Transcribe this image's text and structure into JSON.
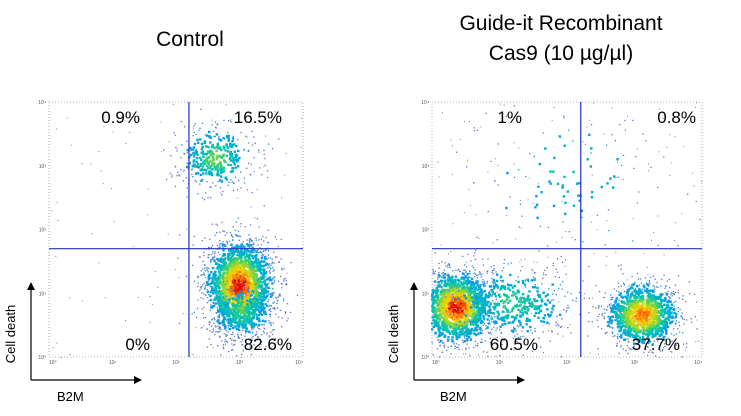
{
  "chart_data": [
    {
      "type": "scatter",
      "subtype": "flow-cytometry-density-dot-plot",
      "title_lines": [
        "Control"
      ],
      "xlabel": "B2M",
      "ylabel": "Cell death",
      "x_scale": "log",
      "y_scale": "log",
      "xlim": [
        1,
        10000
      ],
      "ylim": [
        1,
        10000
      ],
      "x_ticks": [
        "10⁰",
        "10¹",
        "10²",
        "10³",
        "10⁴"
      ],
      "y_ticks": [
        "10⁰",
        "10¹",
        "10²",
        "10³",
        "10⁴"
      ],
      "gate": {
        "x": 160,
        "y": 50
      },
      "quadrants": [
        {
          "position": "top-left",
          "label": "0.9%",
          "value": 0.9
        },
        {
          "position": "top-right",
          "label": "16.5%",
          "value": 16.5
        },
        {
          "position": "bottom-left",
          "label": "0%",
          "value": 0.0
        },
        {
          "position": "bottom-right",
          "label": "82.6%",
          "value": 82.6
        }
      ],
      "populations": [
        {
          "cx": 1000,
          "cy": 13,
          "sx": 1.9,
          "sy": 2.4,
          "n": 1900,
          "intensity": 1.0
        },
        {
          "cx": 1100,
          "cy": 5,
          "sx": 1.8,
          "sy": 1.7,
          "n": 300,
          "intensity": 0.5
        },
        {
          "cx": 420,
          "cy": 1300,
          "sx": 2.0,
          "sy": 1.8,
          "n": 380,
          "intensity": 0.55
        }
      ]
    },
    {
      "type": "scatter",
      "subtype": "flow-cytometry-density-dot-plot",
      "title_lines": [
        "Guide-it Recombinant",
        "Cas9 (10 µg/µl)"
      ],
      "xlabel": "B2M",
      "ylabel": "Cell death",
      "x_scale": "log",
      "y_scale": "log",
      "xlim": [
        1,
        10000
      ],
      "ylim": [
        1,
        10000
      ],
      "x_ticks": [
        "10⁰",
        "10¹",
        "10²",
        "10³",
        "10⁴"
      ],
      "y_ticks": [
        "10⁰",
        "10¹",
        "10²",
        "10³",
        "10⁴"
      ],
      "gate": {
        "x": 160,
        "y": 50
      },
      "quadrants": [
        {
          "position": "top-left",
          "label": "1%",
          "value": 1.0
        },
        {
          "position": "top-right",
          "label": "0.8%",
          "value": 0.8
        },
        {
          "position": "bottom-left",
          "label": "60.5%",
          "value": 60.5
        },
        {
          "position": "bottom-right",
          "label": "37.7%",
          "value": 37.7
        }
      ],
      "populations": [
        {
          "cx": 2.3,
          "cy": 6,
          "sx": 1.9,
          "sy": 2.0,
          "n": 1500,
          "intensity": 1.0
        },
        {
          "cx": 15,
          "cy": 7,
          "sx": 3.2,
          "sy": 2.0,
          "n": 500,
          "intensity": 0.45
        },
        {
          "cx": 1300,
          "cy": 4.5,
          "sx": 1.9,
          "sy": 1.8,
          "n": 1100,
          "intensity": 0.9
        },
        {
          "cx": 100,
          "cy": 600,
          "sx": 6.0,
          "sy": 4.0,
          "n": 120,
          "intensity": 0.3
        }
      ]
    }
  ]
}
